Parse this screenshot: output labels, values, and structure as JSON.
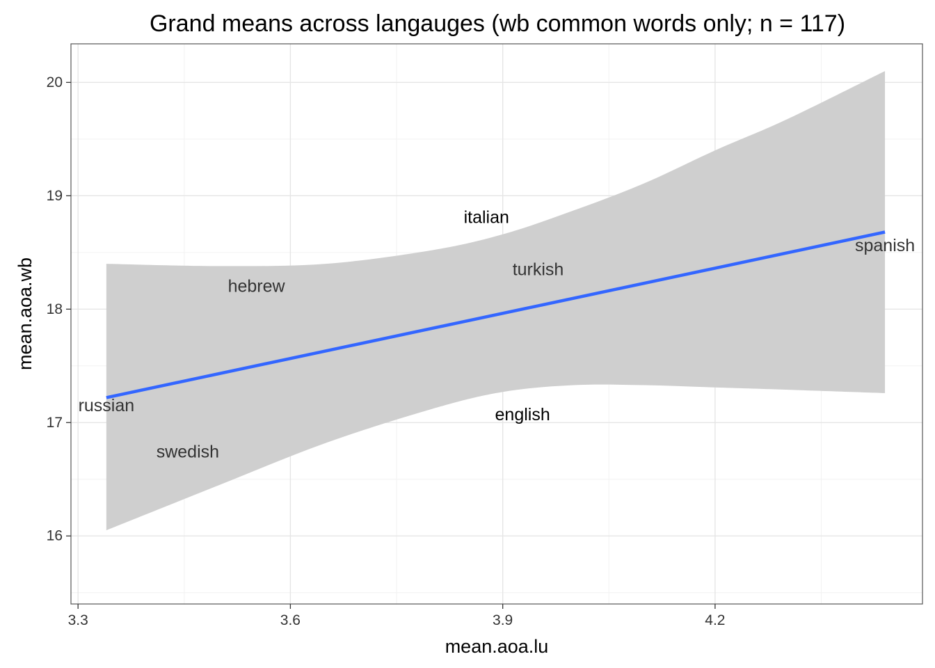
{
  "chart_data": {
    "type": "scatter",
    "title": "Grand means across langauges (wb common words only; n = 117)",
    "xlabel": "mean.aoa.lu",
    "ylabel": "mean.aoa.wb",
    "xlim": [
      3.29,
      4.493
    ],
    "ylim": [
      15.4,
      20.34
    ],
    "x_ticks": [
      3.3,
      3.6,
      3.9,
      4.2
    ],
    "x_tick_labels": [
      "3.3",
      "3.6",
      "3.9",
      "4.2"
    ],
    "y_ticks": [
      16,
      17,
      18,
      19,
      20
    ],
    "y_tick_labels": [
      "16",
      "17",
      "18",
      "19",
      "20"
    ],
    "grid": true,
    "points": [
      {
        "label": "russian",
        "x": 3.34,
        "y": 17.15
      },
      {
        "label": "swedish",
        "x": 3.455,
        "y": 16.74
      },
      {
        "label": "hebrew",
        "x": 3.552,
        "y": 18.2
      },
      {
        "label": "italian",
        "x": 3.877,
        "y": 18.81
      },
      {
        "label": "english",
        "x": 3.928,
        "y": 17.07
      },
      {
        "label": "turkish",
        "x": 3.95,
        "y": 18.35
      },
      {
        "label": "spanish",
        "x": 4.44,
        "y": 18.56
      }
    ],
    "fit_line": {
      "x": [
        3.34,
        4.44
      ],
      "y": [
        17.22,
        18.68
      ]
    },
    "confidence_band": {
      "x": [
        3.34,
        3.5,
        3.65,
        3.8,
        3.9,
        4.0,
        4.1,
        4.2,
        4.3,
        4.44
      ],
      "lower": [
        16.05,
        16.45,
        16.82,
        17.12,
        17.27,
        17.33,
        17.33,
        17.31,
        17.29,
        17.26
      ],
      "upper": [
        18.4,
        18.38,
        18.4,
        18.52,
        18.66,
        18.87,
        19.11,
        19.4,
        19.67,
        20.1
      ]
    },
    "colors": {
      "line": "#3366FF",
      "band": "#cfcfcf",
      "label_outside_band": "#000000",
      "label_inside_band": "#333333",
      "grid_major": "#e5e5e5",
      "grid_minor": "#f2f2f2",
      "panel_border": "#555555"
    }
  }
}
